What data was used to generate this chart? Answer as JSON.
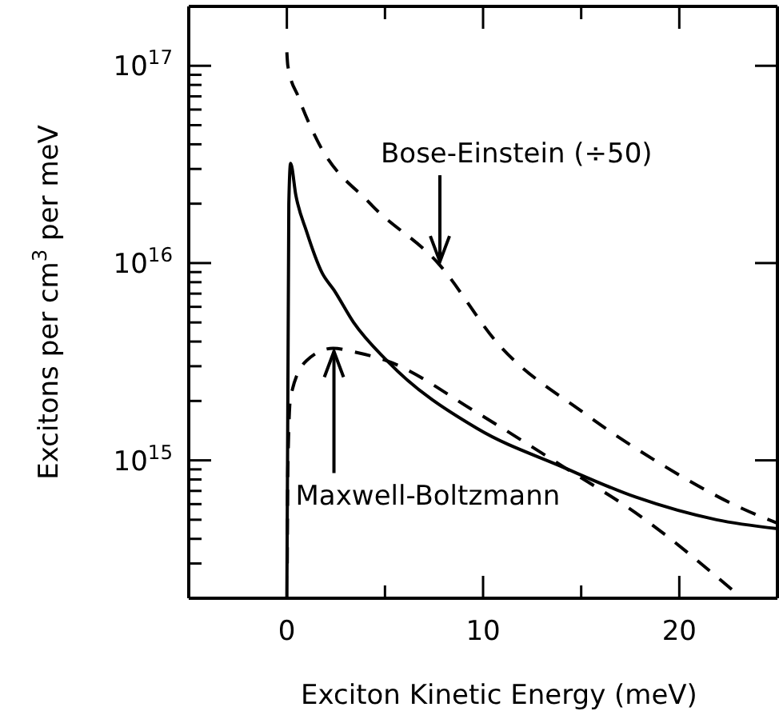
{
  "chart_data": {
    "type": "line",
    "xlabel": "Exciton Kinetic Energy (meV)",
    "ylabel": "Excitons per cm$^{3}$ per meV",
    "log": "y",
    "grid": false,
    "marker": "none",
    "xlim": [
      -5,
      25
    ],
    "xticks": [
      0,
      {
        "value": 5,
        "label": null
      },
      10,
      {
        "value": 15,
        "label": null
      },
      20
    ],
    "ylim": [
      200000000000000.0,
      2e+17
    ],
    "yticks": [
      {
        "value": 300000000000000.0,
        "label": null
      },
      {
        "value": 400000000000000.0,
        "label": null
      },
      {
        "value": 500000000000000.0,
        "label": null
      },
      {
        "value": 600000000000000.0,
        "label": null
      },
      {
        "value": 700000000000000.0,
        "label": null
      },
      {
        "value": 800000000000000.0,
        "label": null
      },
      {
        "value": 900000000000000.0,
        "label": null
      },
      {
        "value": 1000000000000000.0,
        "label": "10$^{15}$"
      },
      {
        "value": 2000000000000000.0,
        "label": null
      },
      {
        "value": 3000000000000000.0,
        "label": null
      },
      {
        "value": 4000000000000000.0,
        "label": null
      },
      {
        "value": 5000000000000000.0,
        "label": null
      },
      {
        "value": 6000000000000000.0,
        "label": null
      },
      {
        "value": 7000000000000000.0,
        "label": null
      },
      {
        "value": 8000000000000000.0,
        "label": null
      },
      {
        "value": 9000000000000000.0,
        "label": null
      },
      {
        "value": 1e+16,
        "label": "10$^{16}$"
      },
      {
        "value": 2e+16,
        "label": null
      },
      {
        "value": 3e+16,
        "label": null
      },
      {
        "value": 4e+16,
        "label": null
      },
      {
        "value": 5e+16,
        "label": null
      },
      {
        "value": 6e+16,
        "label": null
      },
      {
        "value": 7e+16,
        "label": null
      },
      {
        "value": 8e+16,
        "label": null
      },
      {
        "value": 9e+16,
        "label": null
      },
      {
        "value": 1e+17,
        "label": "10$^{17}$"
      }
    ],
    "series": [
      {
        "color": "#000000",
        "line_style": "solid",
        "x": [
          0,
          0.1,
          0.19,
          0.46,
          1.0,
          1.8,
          2.4,
          3.4,
          5.1,
          9.7,
          14.0,
          17.8,
          21.9,
          25
        ],
        "values": [
          200000000000000.0,
          2e+16,
          3.2e+16,
          2.2e+16,
          1.45e+16,
          8900000000000000.0,
          7300000000000000.0,
          5000000000000000.0,
          3200000000000000.0,
          1450000000000000.0,
          930000000000000.0,
          650000000000000.0,
          500000000000000.0,
          450000000000000.0
        ]
      },
      {
        "color": "#000000",
        "line_style": "dashed",
        "x": [
          0,
          0.05,
          0.6,
          1.54,
          4.25,
          7.78,
          10.76,
          15.1,
          19.2,
          23.2,
          25
        ],
        "values": [
          1.17e+17,
          1e+17,
          6.9e+16,
          4.2e+16,
          2e+16,
          9800000000000000.0,
          3900000000000000.0,
          1750000000000000.0,
          940000000000000.0,
          570000000000000.0,
          480000000000000.0
        ]
      },
      {
        "color": "#000000",
        "line_style": "dashed",
        "x": [
          0.02,
          0.05,
          0.19,
          1.0,
          2.36,
          3.4,
          5.07,
          9.67,
          14.0,
          17.8,
          22.95
        ],
        "values": [
          300000000000000.0,
          900000000000000.0,
          2100000000000000.0,
          3200000000000000.0,
          3700000000000000.0,
          3550000000000000.0,
          3200000000000000.0,
          1750000000000000.0,
          940000000000000.0,
          540000000000000.0,
          210000000000000.0
        ]
      }
    ],
    "annotations": [
      {
        "text": "Bose-Einstein (÷50)",
        "x": 7.8,
        "y": 9800000000000000.0
      },
      {
        "text": "Maxwell-Boltzmann",
        "x": 2.4,
        "y": 3700000000000000.0
      }
    ]
  }
}
